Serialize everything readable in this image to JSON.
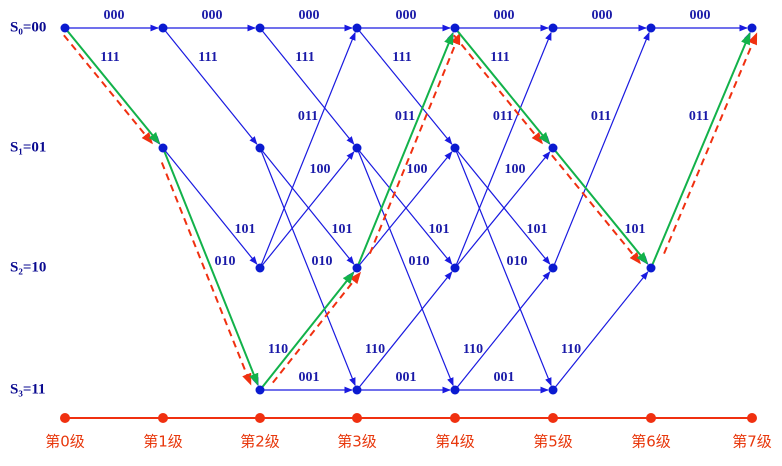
{
  "states": [
    "S₀=00",
    "S₁=01",
    "S₂=10",
    "S₃=11"
  ],
  "stages": [
    "第0级",
    "第1级",
    "第2级",
    "第3级",
    "第4级",
    "第5级",
    "第6级",
    "第7级"
  ],
  "edges": [
    "000",
    "111",
    "000",
    "111",
    "101",
    "010",
    "000",
    "111",
    "101",
    "010",
    "011",
    "100",
    "110",
    "001",
    "000",
    "111",
    "101",
    "010",
    "011",
    "100",
    "110",
    "001",
    "000",
    "111",
    "101",
    "010",
    "011",
    "100",
    "110",
    "001",
    "000",
    "101",
    "011",
    "110",
    "000",
    "011"
  ]
}
